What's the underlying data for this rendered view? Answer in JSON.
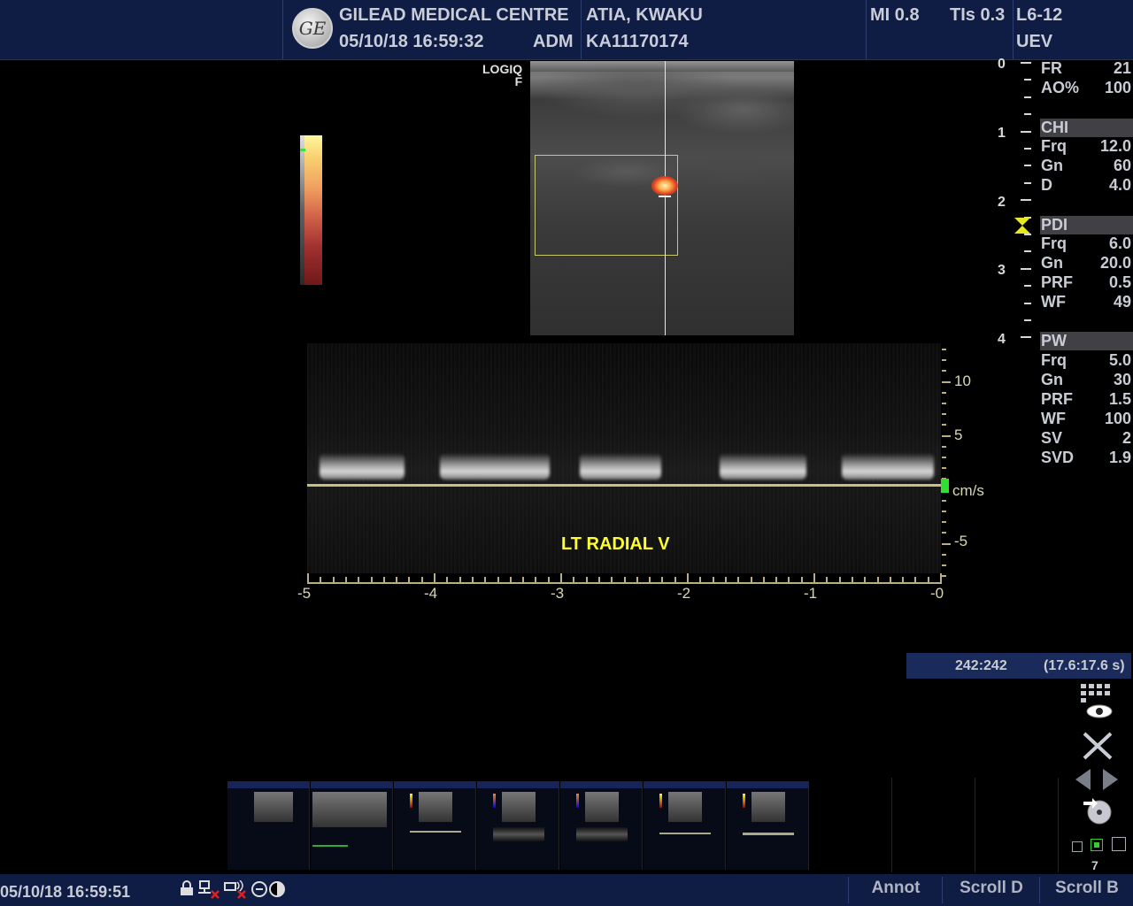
{
  "header": {
    "institution": "GILEAD MEDICAL CENTRE",
    "datetime": "05/10/18 16:59:32",
    "operator": "ADM",
    "patient_name": "ATIA, KWAKU",
    "patient_id": "KA11170174",
    "mi": "MI 0.8",
    "tis": "TIs 0.3",
    "probe": "L6-12",
    "preset": "UEV",
    "logo_text": "GE"
  },
  "image": {
    "system_label_1": "LOGIQ",
    "system_label_2": "F",
    "depth_scale": [
      "0",
      "1",
      "2",
      "3",
      "4"
    ]
  },
  "params": {
    "general": [
      {
        "key": "FR",
        "value": "21"
      },
      {
        "key": "AO%",
        "value": "100"
      }
    ],
    "chi": {
      "title": "CHI",
      "rows": [
        {
          "key": "Frq",
          "value": "12.0"
        },
        {
          "key": "Gn",
          "value": "60"
        },
        {
          "key": "D",
          "value": "4.0"
        }
      ]
    },
    "pdi": {
      "title": "PDI",
      "rows": [
        {
          "key": "Frq",
          "value": "6.0"
        },
        {
          "key": "Gn",
          "value": "20.0"
        },
        {
          "key": "PRF",
          "value": "0.5"
        },
        {
          "key": "WF",
          "value": "49"
        }
      ]
    },
    "pw": {
      "title": "PW",
      "rows": [
        {
          "key": "Frq",
          "value": "5.0"
        },
        {
          "key": "Gn",
          "value": "30"
        },
        {
          "key": "PRF",
          "value": "1.5"
        },
        {
          "key": "WF",
          "value": "100"
        },
        {
          "key": "SV",
          "value": "2"
        },
        {
          "key": "SVD",
          "value": "1.9"
        }
      ]
    }
  },
  "doppler": {
    "vessel_label": "LT RADIAL V",
    "velocity_unit": "cm/s",
    "velocity_ticks": [
      "10",
      "5",
      "-5"
    ],
    "time_ticks": [
      "-5",
      "-4",
      "-3",
      "-2",
      "-1",
      "-0"
    ]
  },
  "cine": {
    "frame": "242:242",
    "time": "(17.6:17.6 s)"
  },
  "thumbnails": {
    "count_label": "7"
  },
  "bottom": {
    "clock": "05/10/18 16:59:51",
    "soft_keys": [
      "Annot",
      "Scroll D",
      "Scroll B"
    ]
  },
  "icons": [
    "lock-icon",
    "network-icon",
    "wireless-icon",
    "ge-service-icon",
    "contrast-icon",
    "grid-eye-icon",
    "close-x-icon",
    "left-arrow-icon",
    "right-arrow-icon",
    "disc-export-icon"
  ],
  "colors": {
    "header_bg": "#0f1c44",
    "vessel_label": "#ffff30",
    "baseline": "#c8c080",
    "indicator": "#30e030"
  }
}
